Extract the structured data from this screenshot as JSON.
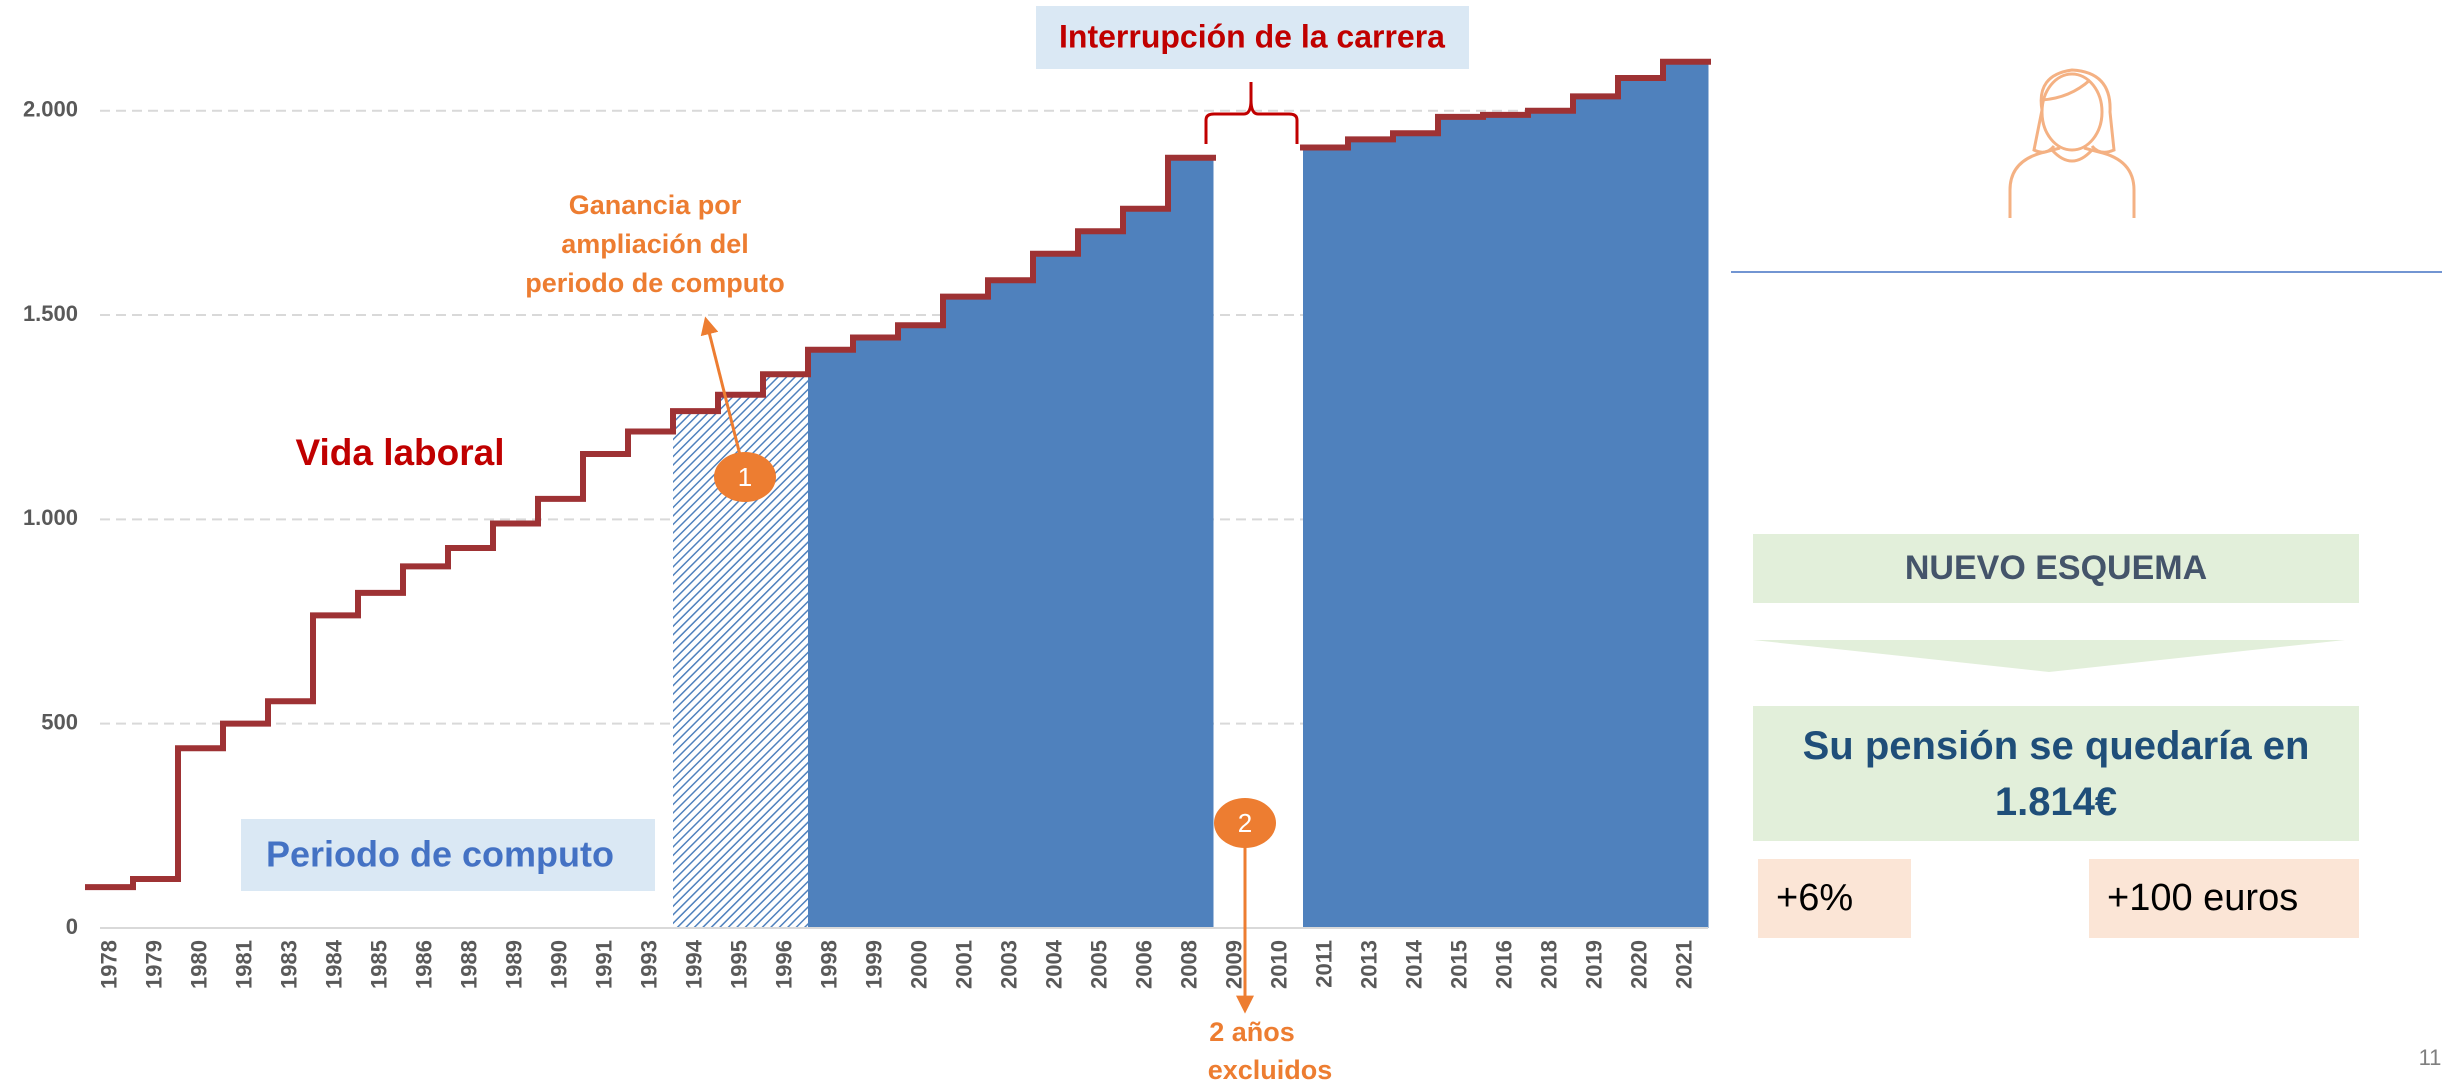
{
  "chart_data": {
    "type": "step-area",
    "categories": [
      "1978",
      "1979",
      "1980",
      "1981",
      "1983",
      "1984",
      "1985",
      "1986",
      "1988",
      "1989",
      "1990",
      "1991",
      "1993",
      "1994",
      "1995",
      "1996",
      "1998",
      "1999",
      "2000",
      "2001",
      "2003",
      "2004",
      "2005",
      "2006",
      "2008",
      "2009",
      "2010",
      "2011",
      "2013",
      "2014",
      "2015",
      "2016",
      "2018",
      "2019",
      "2020",
      "2021"
    ],
    "series": [
      {
        "name": "Vida laboral",
        "color": "#9e3234",
        "values": [
          100,
          120,
          440,
          500,
          555,
          765,
          820,
          885,
          930,
          990,
          1050,
          1160,
          1215,
          1265,
          1305,
          1355,
          1415,
          1445,
          1475,
          1545,
          1585,
          1650,
          1705,
          1760,
          1885,
          null,
          null,
          1910,
          1930,
          1945,
          1985,
          1990,
          2000,
          2035,
          2080,
          2120
        ]
      }
    ],
    "area_color": "#4f81bd",
    "hatch_from": "1994",
    "solid_from": "1998",
    "ylim": [
      0,
      2200
    ],
    "yticks": [
      0,
      500,
      {
        "value": 1000,
        "label": "1.000"
      },
      {
        "value": 1500,
        "label": "1.500"
      },
      {
        "value": 2000,
        "label": "2.000"
      }
    ],
    "grid": true,
    "annotations": {
      "career_break": "Interrupción de la carrera",
      "gain": [
        "Ganancia por",
        "ampliación del",
        "periodo de computo"
      ],
      "gain_marker": "1",
      "excluded_marker": "2",
      "excluded": [
        "2 años",
        "excluidos"
      ],
      "period_label": "Periodo de computo"
    }
  },
  "panel": {
    "scheme": "NUEVO ESQUEMA",
    "pension": "Su pensión se quedaría en 1.814€",
    "pct": "+6%",
    "euros": "+100 euros"
  },
  "page_number": "11"
}
